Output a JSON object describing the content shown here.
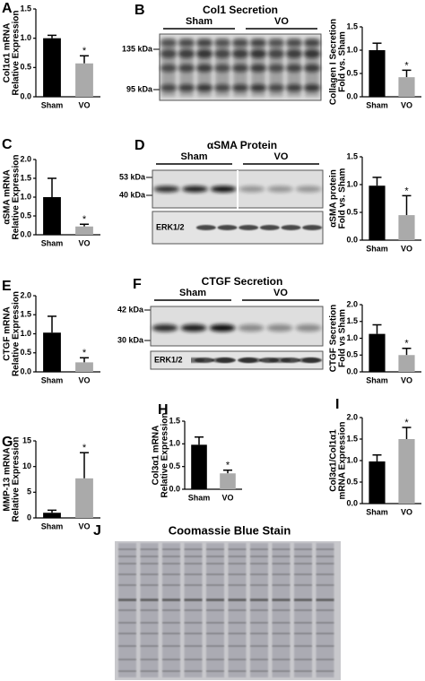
{
  "chart_data": [
    {
      "type": "bar",
      "label": "A",
      "ylabel": [
        "Col1α1 mRNA",
        "Relative Expression"
      ],
      "categories": [
        "Sham",
        "VO"
      ],
      "values": [
        1.0,
        0.57
      ],
      "errors": [
        0.05,
        0.13
      ],
      "colors": [
        "#000000",
        "#aaaaaa"
      ],
      "ylim": [
        0,
        1.5
      ],
      "yticks": [
        {
          "value": 0,
          "label": "0.0"
        },
        {
          "value": 0.5,
          "label": "0.5"
        },
        {
          "value": 1,
          "label": "1.0"
        },
        {
          "value": 1.5,
          "label": "1.5"
        }
      ],
      "annotations": [
        {
          "text": "*",
          "x": "VO"
        }
      ]
    },
    {
      "type": "bar",
      "ylabel": [
        "Collagen I Secretion",
        "Fold vs. Sham"
      ],
      "categories": [
        "Sham",
        "VO"
      ],
      "values": [
        1.0,
        0.42
      ],
      "errors": [
        0.15,
        0.15
      ],
      "colors": [
        "#000000",
        "#aaaaaa"
      ],
      "ylim": [
        0,
        1.5
      ],
      "yticks": [
        {
          "value": 0,
          "label": "0.0"
        },
        {
          "value": 0.5,
          "label": "0.5"
        },
        {
          "value": 1,
          "label": "1.0"
        },
        {
          "value": 1.5,
          "label": "1.5"
        }
      ],
      "annotations": [
        {
          "text": "*",
          "x": "VO"
        }
      ]
    },
    {
      "type": "bar",
      "label": "C",
      "ylabel": [
        "αSMA mRNA",
        "Relative Expression"
      ],
      "categories": [
        "Sham",
        "VO"
      ],
      "values": [
        1.0,
        0.22
      ],
      "errors": [
        0.5,
        0.06
      ],
      "colors": [
        "#000000",
        "#aaaaaa"
      ],
      "ylim": [
        0,
        2
      ],
      "yticks": [
        {
          "value": 0,
          "label": "0.0"
        },
        {
          "value": 0.5,
          "label": "0.5"
        },
        {
          "value": 1,
          "label": "1.0"
        },
        {
          "value": 1.5,
          "label": "1.5"
        },
        {
          "value": 2,
          "label": "2.0"
        }
      ],
      "annotations": [
        {
          "text": "*",
          "x": "VO"
        }
      ]
    },
    {
      "type": "bar",
      "ylabel": [
        "αSMA protein",
        "Fold vs. Sham"
      ],
      "categories": [
        "Sham",
        "VO"
      ],
      "values": [
        0.98,
        0.45
      ],
      "errors": [
        0.15,
        0.35
      ],
      "colors": [
        "#000000",
        "#aaaaaa"
      ],
      "ylim": [
        0,
        1.5
      ],
      "yticks": [
        {
          "value": 0,
          "label": "0.0"
        },
        {
          "value": 0.5,
          "label": "0.5"
        },
        {
          "value": 1,
          "label": "1.0"
        },
        {
          "value": 1.5,
          "label": "1.5"
        }
      ],
      "annotations": [
        {
          "text": "*",
          "x": "VO"
        }
      ]
    },
    {
      "type": "bar",
      "label": "E",
      "ylabel": [
        "CTGF mRNA",
        "Relative Expression"
      ],
      "categories": [
        "Sham",
        "VO"
      ],
      "values": [
        1.03,
        0.25
      ],
      "errors": [
        0.43,
        0.12
      ],
      "colors": [
        "#000000",
        "#aaaaaa"
      ],
      "ylim": [
        0,
        2
      ],
      "yticks": [
        {
          "value": 0,
          "label": "0.0"
        },
        {
          "value": 0.5,
          "label": "0.5"
        },
        {
          "value": 1,
          "label": "1.0"
        },
        {
          "value": 1.5,
          "label": "1.5"
        },
        {
          "value": 2,
          "label": "2.0"
        }
      ],
      "annotations": [
        {
          "text": "*",
          "x": "VO"
        }
      ]
    },
    {
      "type": "bar",
      "ylabel": [
        "CTGF Secretion",
        "Fold vs Sham"
      ],
      "categories": [
        "Sham",
        "VO"
      ],
      "values": [
        1.13,
        0.5
      ],
      "errors": [
        0.27,
        0.2
      ],
      "colors": [
        "#000000",
        "#aaaaaa"
      ],
      "ylim": [
        0,
        2
      ],
      "yticks": [
        {
          "value": 0,
          "label": "0.0"
        },
        {
          "value": 0.5,
          "label": "0.5"
        },
        {
          "value": 1,
          "label": "1.0"
        },
        {
          "value": 1.5,
          "label": "1.5"
        },
        {
          "value": 2,
          "label": "2.0"
        }
      ],
      "annotations": [
        {
          "text": "*",
          "x": "VO"
        }
      ]
    },
    {
      "type": "bar",
      "label": "G",
      "ylabel": [
        "MMP-13 mRNA",
        "Relative Expression"
      ],
      "categories": [
        "Sham",
        "VO"
      ],
      "values": [
        1.0,
        7.7
      ],
      "errors": [
        0.5,
        5.0
      ],
      "colors": [
        "#000000",
        "#aaaaaa"
      ],
      "ylim": [
        0,
        15
      ],
      "yticks": [
        0,
        5,
        10,
        15
      ],
      "annotations": [
        {
          "text": "*",
          "x": "VO"
        }
      ]
    },
    {
      "type": "bar",
      "label": "H",
      "ylabel": [
        "Col3α1 mRNA",
        "Relative Expression"
      ],
      "categories": [
        "Sham",
        "VO"
      ],
      "values": [
        0.98,
        0.35
      ],
      "errors": [
        0.17,
        0.07
      ],
      "colors": [
        "#000000",
        "#aaaaaa"
      ],
      "ylim": [
        0,
        1.5
      ],
      "yticks": [
        {
          "value": 0,
          "label": "0.0"
        },
        {
          "value": 0.5,
          "label": "0.5"
        },
        {
          "value": 1,
          "label": "1.0"
        },
        {
          "value": 1.5,
          "label": "1.5"
        }
      ],
      "annotations": [
        {
          "text": "*",
          "x": "VO"
        }
      ]
    },
    {
      "type": "bar",
      "label": "I",
      "ylabel": [
        "Col3α1/Col1α1",
        "mRNA Expression"
      ],
      "categories": [
        "Sham",
        "VO"
      ],
      "values": [
        0.98,
        1.5
      ],
      "errors": [
        0.15,
        0.27
      ],
      "colors": [
        "#000000",
        "#aaaaaa"
      ],
      "ylim": [
        0,
        2
      ],
      "yticks": [
        {
          "value": 0,
          "label": "0.0"
        },
        {
          "value": 0.5,
          "label": "0.5"
        },
        {
          "value": 1,
          "label": "1.0"
        },
        {
          "value": 1.5,
          "label": "1.5"
        },
        {
          "value": 2,
          "label": "2.0"
        }
      ],
      "annotations": [
        {
          "text": "*",
          "x": "VO"
        }
      ]
    }
  ],
  "blots": [
    {
      "label": "B",
      "title": "Col1 Secretion",
      "groups": [
        "Sham",
        "VO"
      ],
      "markers": [
        "135 kDa",
        "95 kDa"
      ]
    },
    {
      "label": "D",
      "title": "αSMA Protein",
      "groups": [
        "Sham",
        "VO"
      ],
      "markers": [
        "53 kDa",
        "40 kDa"
      ],
      "loading": "ERK1/2"
    },
    {
      "label": "F",
      "title": "CTGF Secretion",
      "groups": [
        "Sham",
        "VO"
      ],
      "markers": [
        "42 kDa",
        "30 kDa"
      ],
      "loading": "ERK1/2"
    },
    {
      "label": "J",
      "title": "Coomassie Blue Stain"
    }
  ]
}
